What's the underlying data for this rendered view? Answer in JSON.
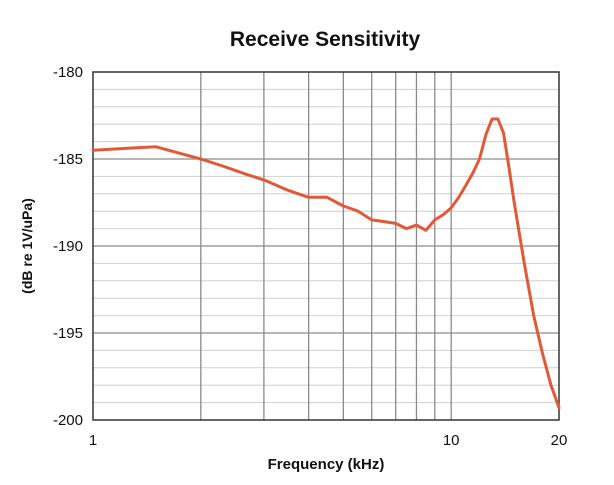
{
  "chart_data": {
    "type": "line",
    "title": "Receive Sensitivity",
    "xlabel": "Frequency (kHz)",
    "ylabel": "(dB re 1V/uPa)",
    "x_scale": "log",
    "xlim": [
      1,
      20
    ],
    "ylim": [
      -200,
      -180
    ],
    "x_ticks": [
      {
        "value": 1,
        "label": "1"
      },
      {
        "value": 10,
        "label": "10"
      },
      {
        "value": 20,
        "label": "20"
      }
    ],
    "y_ticks": [
      {
        "value": -180,
        "label": "-180"
      },
      {
        "value": -185,
        "label": "-185"
      },
      {
        "value": -190,
        "label": "-190"
      },
      {
        "value": -195,
        "label": "-195"
      },
      {
        "value": -200,
        "label": "-200"
      }
    ],
    "grid": true,
    "series": [
      {
        "color": "#e05a3a",
        "x": [
          1.0,
          1.2,
          1.5,
          1.8,
          2.0,
          2.3,
          2.7,
          3.0,
          3.5,
          4.0,
          4.5,
          5.0,
          5.5,
          6.0,
          6.5,
          7.0,
          7.5,
          8.0,
          8.5,
          9.0,
          9.5,
          10.0,
          10.5,
          11.0,
          11.5,
          12.0,
          12.5,
          13.0,
          13.5,
          14.0,
          14.5,
          15.0,
          16.0,
          17.0,
          18.0,
          19.0,
          20.0
        ],
        "y": [
          -184.5,
          -184.4,
          -184.3,
          -184.75,
          -185.0,
          -185.4,
          -185.9,
          -186.2,
          -186.8,
          -187.2,
          -187.2,
          -187.7,
          -188.0,
          -188.5,
          -188.6,
          -188.7,
          -189.0,
          -188.8,
          -189.1,
          -188.5,
          -188.2,
          -187.8,
          -187.2,
          -186.5,
          -185.8,
          -185.0,
          -183.6,
          -182.7,
          -182.7,
          -183.5,
          -185.5,
          -187.5,
          -191.0,
          -194.0,
          -196.2,
          -198.0,
          -199.3
        ]
      }
    ]
  }
}
